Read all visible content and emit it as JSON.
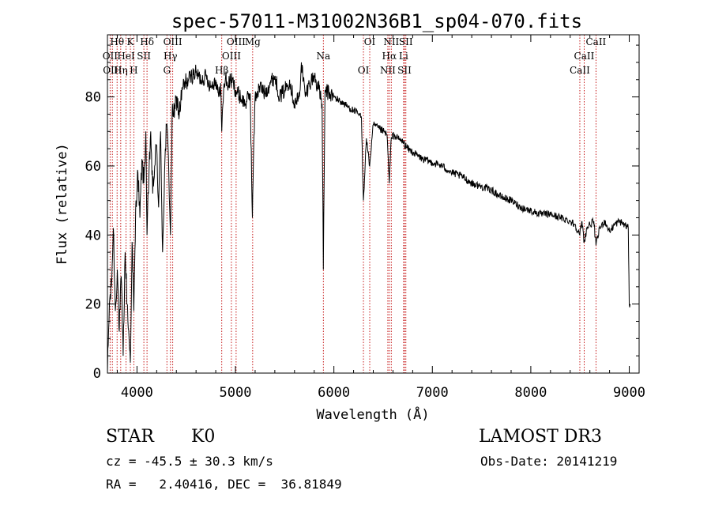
{
  "chart_data": {
    "type": "line",
    "title": "spec-57011-M31002N36B1_sp04-070.fits",
    "xlabel": "Wavelength (Å)",
    "ylabel": "Flux (relative)",
    "xlim": [
      3700,
      9100
    ],
    "ylim": [
      0,
      98
    ],
    "xticks": [
      4000,
      5000,
      6000,
      7000,
      8000,
      9000
    ],
    "xtick_labels": [
      "4000",
      "5000",
      "6000",
      "7000",
      "8000",
      "9000"
    ],
    "yticks": [
      0,
      20,
      40,
      60,
      80
    ],
    "ytick_labels": [
      "0",
      "20",
      "40",
      "60",
      "80"
    ],
    "grid": false,
    "series": [
      {
        "name": "flux",
        "color": "#000000",
        "x": [
          3700,
          3720,
          3740,
          3760,
          3780,
          3800,
          3820,
          3840,
          3860,
          3880,
          3900,
          3920,
          3933,
          3950,
          3968,
          3990,
          4010,
          4030,
          4050,
          4070,
          4090,
          4102,
          4120,
          4140,
          4160,
          4180,
          4200,
          4220,
          4240,
          4260,
          4280,
          4300,
          4320,
          4340,
          4360,
          4380,
          4400,
          4430,
          4460,
          4500,
          4550,
          4600,
          4650,
          4700,
          4750,
          4800,
          4830,
          4850,
          4861,
          4880,
          4900,
          4920,
          4950,
          4980,
          5000,
          5050,
          5100,
          5150,
          5172,
          5183,
          5200,
          5250,
          5300,
          5350,
          5400,
          5450,
          5500,
          5550,
          5600,
          5650,
          5670,
          5690,
          5710,
          5750,
          5800,
          5850,
          5880,
          5893,
          5910,
          5950,
          6000,
          6050,
          6100,
          6150,
          6200,
          6250,
          6280,
          6300,
          6330,
          6363,
          6400,
          6450,
          6500,
          6540,
          6563,
          6580,
          6600,
          6650,
          6700,
          6750,
          6800,
          6900,
          7000,
          7100,
          7200,
          7300,
          7400,
          7500,
          7600,
          7700,
          7800,
          7900,
          8000,
          8100,
          8200,
          8300,
          8400,
          8450,
          8498,
          8520,
          8542,
          8570,
          8600,
          8640,
          8662,
          8700,
          8750,
          8800,
          8850,
          8900,
          8950,
          8990,
          9000,
          9010
        ],
        "values": [
          0,
          20,
          25,
          42,
          18,
          30,
          12,
          28,
          5,
          35,
          20,
          10,
          3,
          38,
          18,
          50,
          58,
          45,
          62,
          55,
          70,
          40,
          55,
          70,
          52,
          60,
          66,
          48,
          70,
          35,
          58,
          72,
          62,
          40,
          78,
          74,
          80,
          75,
          82,
          84,
          86,
          87,
          85,
          86,
          83,
          85,
          80,
          84,
          70,
          82,
          86,
          83,
          85,
          84,
          82,
          80,
          78,
          81,
          45,
          62,
          80,
          83,
          81,
          84,
          86,
          80,
          82,
          85,
          78,
          80,
          90,
          85,
          80,
          84,
          86,
          82,
          78,
          30,
          82,
          81,
          80,
          79,
          78,
          77,
          76,
          75,
          74,
          50,
          68,
          60,
          72,
          71,
          70,
          69,
          55,
          67,
          69,
          68,
          67,
          65,
          64,
          62,
          61,
          60,
          58,
          57,
          55,
          54,
          53,
          51,
          50,
          48,
          47,
          46,
          46,
          45,
          44,
          43,
          40,
          44,
          38,
          42,
          43,
          44,
          37,
          42,
          44,
          41,
          43,
          44,
          43,
          42,
          20,
          20
        ]
      }
    ],
    "annotations": [
      {
        "label": "Hθ",
        "x": 3798
      },
      {
        "label": "OII",
        "x": 3727
      },
      {
        "label": "OIII",
        "x": 3750
      },
      {
        "label": "K",
        "x": 3933
      },
      {
        "label": "HeI",
        "x": 3889
      },
      {
        "label": "Hη",
        "x": 3835
      },
      {
        "label": "Hδ",
        "x": 4102
      },
      {
        "label": "SII",
        "x": 4070
      },
      {
        "label": "H",
        "x": 3968
      },
      {
        "label": "OIII",
        "x": 4363
      },
      {
        "label": "Hγ",
        "x": 4340
      },
      {
        "label": "G",
        "x": 4304
      },
      {
        "label": "OIII",
        "x": 5007
      },
      {
        "label": "OIII",
        "x": 4959
      },
      {
        "label": "Hβ",
        "x": 4861
      },
      {
        "label": "Mg",
        "x": 5175
      },
      {
        "label": "Na",
        "x": 5893
      },
      {
        "label": "OI",
        "x": 6300
      },
      {
        "label": "OI",
        "x": 6364
      },
      {
        "label": "Hα",
        "x": 6563
      },
      {
        "label": "SII",
        "x": 6717
      },
      {
        "label": "NII",
        "x": 6583
      },
      {
        "label": "Li",
        "x": 6708
      },
      {
        "label": "NII",
        "x": 6548
      },
      {
        "label": "SII",
        "x": 6731
      },
      {
        "label": "CaII",
        "x": 8542
      },
      {
        "label": "CaII",
        "x": 8498
      },
      {
        "label": "CaII",
        "x": 8662
      }
    ]
  },
  "info": {
    "class": "STAR",
    "subclass": "K0",
    "survey": "LAMOST DR3",
    "redshift": "cz = -45.5 ± 30.3 km/s",
    "obs_date": "Obs-Date: 20141219",
    "coords": "RA =   2.40416, DEC =  36.81849"
  }
}
